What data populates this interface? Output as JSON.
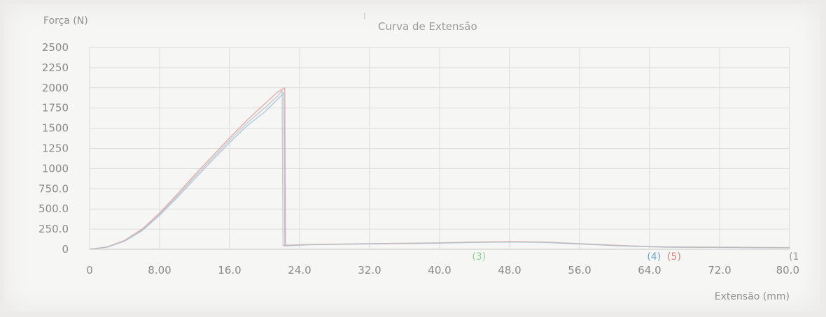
{
  "chart_data": {
    "type": "line",
    "title": "Curva de Extensão",
    "ylabel": "Força (N)",
    "xlabel": "Extensão (mm)",
    "xlim": [
      0,
      80
    ],
    "ylim": [
      0,
      2500
    ],
    "x_ticks": [
      "0",
      "8.00",
      "16.0",
      "24.0",
      "32.0",
      "40.0",
      "48.0",
      "56.0",
      "64.0",
      "72.0",
      "80.0"
    ],
    "y_ticks": [
      "0",
      "250.0",
      "500.0",
      "750.0",
      "1000",
      "1250",
      "1500",
      "1750",
      "2000",
      "2250",
      "2500"
    ],
    "grid": true,
    "series": [
      {
        "color": "#e39c9c",
        "points": [
          [
            0,
            0
          ],
          [
            2,
            30
          ],
          [
            4,
            110
          ],
          [
            6,
            250
          ],
          [
            8,
            450
          ],
          [
            10,
            680
          ],
          [
            12,
            920
          ],
          [
            14,
            1150
          ],
          [
            16,
            1380
          ],
          [
            18,
            1600
          ],
          [
            20,
            1800
          ],
          [
            21.5,
            1950
          ],
          [
            22.3,
            2000
          ],
          [
            22.4,
            50
          ],
          [
            25,
            60
          ],
          [
            32,
            70
          ],
          [
            40,
            80
          ],
          [
            44,
            90
          ],
          [
            48,
            95
          ],
          [
            52,
            90
          ],
          [
            56,
            70
          ],
          [
            60,
            50
          ],
          [
            64,
            35
          ],
          [
            66,
            30
          ],
          [
            80,
            20
          ]
        ]
      },
      {
        "color": "#9cc0dd",
        "points": [
          [
            0,
            0
          ],
          [
            2,
            25
          ],
          [
            4,
            100
          ],
          [
            6,
            230
          ],
          [
            8,
            420
          ],
          [
            10,
            640
          ],
          [
            12,
            870
          ],
          [
            14,
            1100
          ],
          [
            16,
            1320
          ],
          [
            18,
            1530
          ],
          [
            20,
            1700
          ],
          [
            21.5,
            1860
          ],
          [
            22.2,
            1940
          ],
          [
            22.3,
            40
          ],
          [
            25,
            55
          ],
          [
            32,
            68
          ],
          [
            40,
            75
          ],
          [
            44,
            85
          ],
          [
            48,
            90
          ],
          [
            52,
            85
          ],
          [
            56,
            65
          ],
          [
            60,
            45
          ],
          [
            64,
            30
          ],
          [
            66,
            25
          ],
          [
            80,
            18
          ]
        ]
      },
      {
        "color": "#bdbdbd",
        "points": [
          [
            0,
            0
          ],
          [
            2,
            28
          ],
          [
            4,
            105
          ],
          [
            6,
            240
          ],
          [
            8,
            435
          ],
          [
            10,
            660
          ],
          [
            12,
            895
          ],
          [
            14,
            1125
          ],
          [
            16,
            1350
          ],
          [
            18,
            1565
          ],
          [
            20,
            1750
          ],
          [
            21.5,
            1900
          ],
          [
            22.0,
            1970
          ],
          [
            22.1,
            45
          ],
          [
            25,
            58
          ],
          [
            32,
            66
          ],
          [
            40,
            78
          ],
          [
            44,
            88
          ],
          [
            48,
            92
          ],
          [
            52,
            88
          ],
          [
            56,
            68
          ],
          [
            60,
            48
          ],
          [
            64,
            33
          ],
          [
            66,
            28
          ],
          [
            80,
            19
          ]
        ]
      }
    ],
    "annotations": [
      {
        "text": "(3)",
        "x": 44.5,
        "color": "#8fd39b"
      },
      {
        "text": "(4)",
        "x": 64.5,
        "color": "#6fa6d8"
      },
      {
        "text": "(5)",
        "x": 66.8,
        "color": "#e07d7d"
      },
      {
        "text": "(1",
        "x": 80.5,
        "color": "#9a9a9a"
      }
    ],
    "colors": {
      "grid": "#dcdcdc",
      "axis": "#c8c8c8",
      "text": "#8a8a8a",
      "title": "#9a9a9a"
    }
  }
}
